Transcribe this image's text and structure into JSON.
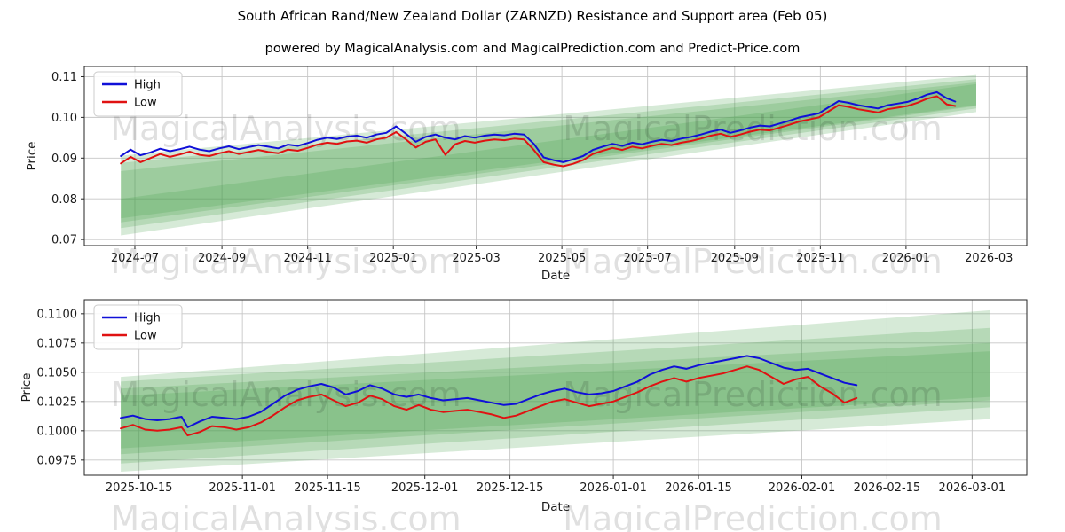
{
  "title": "South African Rand/New Zealand Dollar (ZARNZD) Resistance and Support area (Feb 05)",
  "subtitle": "powered by MagicalAnalysis.com and MagicalPrediction.com and Predict-Price.com",
  "watermark": {
    "texts": [
      "MagicalAnalysis.com",
      "MagicalPrediction.com"
    ]
  },
  "colors": {
    "high_line": "#1010d8",
    "low_line": "#e01212",
    "band_fill": "#46a049",
    "band_alpha": 0.22,
    "grid": "#c6c6c6",
    "spine": "#262626",
    "tick_text": "#1a1a1a",
    "watermark_text": "rgba(0,0,0,0.12)",
    "legend_border": "#cccccc",
    "legend_bg": "rgba(255,255,255,0.85)"
  },
  "chart_data": [
    {
      "type": "line",
      "xlabel": "Date",
      "ylabel": "Price",
      "grid": true,
      "legend_position": "upper left",
      "legend": [
        "High",
        "Low"
      ],
      "xlim": [
        "2024-05-26",
        "2026-03-28"
      ],
      "ylim": [
        0.0685,
        0.1125
      ],
      "xticks": [
        {
          "date": "2024-07-01",
          "label": "2024-07"
        },
        {
          "date": "2024-09-01",
          "label": "2024-09"
        },
        {
          "date": "2024-11-01",
          "label": "2024-11"
        },
        {
          "date": "2025-01-01",
          "label": "2025-01"
        },
        {
          "date": "2025-03-01",
          "label": "2025-03"
        },
        {
          "date": "2025-05-01",
          "label": "2025-05"
        },
        {
          "date": "2025-07-01",
          "label": "2025-07"
        },
        {
          "date": "2025-09-01",
          "label": "2025-09"
        },
        {
          "date": "2025-11-01",
          "label": "2025-11"
        },
        {
          "date": "2026-01-01",
          "label": "2026-01"
        },
        {
          "date": "2026-03-01",
          "label": "2026-03"
        }
      ],
      "yticks": [
        {
          "value": 0.07,
          "label": "0.07"
        },
        {
          "value": 0.08,
          "label": "0.08"
        },
        {
          "value": 0.09,
          "label": "0.09"
        },
        {
          "value": 0.1,
          "label": "0.10"
        },
        {
          "value": 0.11,
          "label": "0.11"
        }
      ],
      "dates": [
        "2024-06-21",
        "2024-06-28",
        "2024-07-05",
        "2024-07-12",
        "2024-07-19",
        "2024-07-26",
        "2024-08-02",
        "2024-08-09",
        "2024-08-16",
        "2024-08-23",
        "2024-08-30",
        "2024-09-06",
        "2024-09-13",
        "2024-09-20",
        "2024-09-27",
        "2024-10-04",
        "2024-10-11",
        "2024-10-18",
        "2024-10-25",
        "2024-11-01",
        "2024-11-08",
        "2024-11-15",
        "2024-11-22",
        "2024-11-29",
        "2024-12-06",
        "2024-12-13",
        "2024-12-20",
        "2024-12-27",
        "2025-01-03",
        "2025-01-10",
        "2025-01-17",
        "2025-01-24",
        "2025-01-31",
        "2025-02-07",
        "2025-02-14",
        "2025-02-21",
        "2025-02-28",
        "2025-03-07",
        "2025-03-14",
        "2025-03-21",
        "2025-03-28",
        "2025-04-04",
        "2025-04-11",
        "2025-04-18",
        "2025-04-25",
        "2025-05-02",
        "2025-05-09",
        "2025-05-16",
        "2025-05-23",
        "2025-05-30",
        "2025-06-06",
        "2025-06-13",
        "2025-06-20",
        "2025-06-27",
        "2025-07-04",
        "2025-07-11",
        "2025-07-18",
        "2025-07-25",
        "2025-08-01",
        "2025-08-08",
        "2025-08-15",
        "2025-08-22",
        "2025-08-29",
        "2025-09-05",
        "2025-09-12",
        "2025-09-19",
        "2025-09-26",
        "2025-10-03",
        "2025-10-10",
        "2025-10-17",
        "2025-10-24",
        "2025-10-31",
        "2025-11-07",
        "2025-11-14",
        "2025-11-21",
        "2025-11-28",
        "2025-12-05",
        "2025-12-12",
        "2025-12-19",
        "2025-12-26",
        "2026-01-02",
        "2026-01-09",
        "2026-01-16",
        "2026-01-23",
        "2026-01-30",
        "2026-02-05"
      ],
      "series": [
        {
          "name": "High",
          "color_key": "high_line",
          "values": [
            0.0905,
            0.0921,
            0.0907,
            0.0914,
            0.0923,
            0.0917,
            0.0922,
            0.0928,
            0.0921,
            0.0917,
            0.0924,
            0.0929,
            0.0922,
            0.0927,
            0.0932,
            0.0928,
            0.0924,
            0.0933,
            0.093,
            0.0937,
            0.0945,
            0.095,
            0.0947,
            0.0953,
            0.0955,
            0.095,
            0.0958,
            0.0962,
            0.0978,
            0.096,
            0.094,
            0.0952,
            0.0958,
            0.095,
            0.0946,
            0.0954,
            0.095,
            0.0955,
            0.0958,
            0.0956,
            0.096,
            0.0958,
            0.0935,
            0.0902,
            0.0895,
            0.089,
            0.0897,
            0.0905,
            0.092,
            0.0928,
            0.0935,
            0.093,
            0.0938,
            0.0934,
            0.094,
            0.0945,
            0.0942,
            0.0948,
            0.0952,
            0.0958,
            0.0965,
            0.097,
            0.0962,
            0.0968,
            0.0975,
            0.098,
            0.0978,
            0.0985,
            0.0992,
            0.1,
            0.1005,
            0.101,
            0.1025,
            0.104,
            0.1036,
            0.103,
            0.1026,
            0.1022,
            0.103,
            0.1034,
            0.1038,
            0.1046,
            0.1056,
            0.1062,
            0.1047,
            0.1039
          ]
        },
        {
          "name": "Low",
          "color_key": "low_line",
          "values": [
            0.0887,
            0.0903,
            0.089,
            0.09,
            0.091,
            0.0903,
            0.0909,
            0.0916,
            0.0908,
            0.0905,
            0.0912,
            0.0917,
            0.091,
            0.0915,
            0.092,
            0.0915,
            0.0912,
            0.0921,
            0.0918,
            0.0925,
            0.0933,
            0.0938,
            0.0935,
            0.0941,
            0.0943,
            0.0938,
            0.0946,
            0.095,
            0.0964,
            0.0946,
            0.0926,
            0.094,
            0.0946,
            0.0908,
            0.0934,
            0.0942,
            0.0938,
            0.0943,
            0.0946,
            0.0944,
            0.0948,
            0.0946,
            0.092,
            0.089,
            0.0884,
            0.088,
            0.0886,
            0.0895,
            0.091,
            0.0918,
            0.0925,
            0.092,
            0.0928,
            0.0924,
            0.093,
            0.0935,
            0.0932,
            0.0938,
            0.0942,
            0.0948,
            0.0955,
            0.096,
            0.0952,
            0.0958,
            0.0965,
            0.097,
            0.0968,
            0.0975,
            0.0982,
            0.099,
            0.0995,
            0.1,
            0.1015,
            0.103,
            0.1026,
            0.102,
            0.1016,
            0.1012,
            0.102,
            0.1024,
            0.1028,
            0.1036,
            0.1046,
            0.1052,
            0.1032,
            0.1028
          ]
        }
      ],
      "bands": [
        {
          "start": "2024-06-21",
          "end": "2026-02-20",
          "start_low": 0.071,
          "start_high": 0.0906,
          "end_low": 0.1013,
          "end_high": 0.1104
        },
        {
          "start": "2024-06-21",
          "end": "2026-02-20",
          "start_low": 0.0728,
          "start_high": 0.0888,
          "end_low": 0.1022,
          "end_high": 0.1094
        },
        {
          "start": "2024-06-21",
          "end": "2026-02-20",
          "start_low": 0.0742,
          "start_high": 0.0868,
          "end_low": 0.1028,
          "end_high": 0.1086
        },
        {
          "start": "2024-06-21",
          "end": "2026-02-20",
          "start_low": 0.0752,
          "start_high": 0.08,
          "end_low": 0.103,
          "end_high": 0.1082
        }
      ]
    },
    {
      "type": "line",
      "xlabel": "Date",
      "ylabel": "Price",
      "grid": true,
      "legend_position": "upper left",
      "legend": [
        "High",
        "Low"
      ],
      "xlim": [
        "2025-10-06",
        "2026-03-10"
      ],
      "ylim": [
        0.0962,
        0.1112
      ],
      "xticks": [
        {
          "date": "2025-10-15",
          "label": "2025-10-15"
        },
        {
          "date": "2025-11-01",
          "label": "2025-11-01"
        },
        {
          "date": "2025-11-15",
          "label": "2025-11-15"
        },
        {
          "date": "2025-12-01",
          "label": "2025-12-01"
        },
        {
          "date": "2025-12-15",
          "label": "2025-12-15"
        },
        {
          "date": "2026-01-01",
          "label": "2026-01-01"
        },
        {
          "date": "2026-01-15",
          "label": "2026-01-15"
        },
        {
          "date": "2026-02-01",
          "label": "2026-02-01"
        },
        {
          "date": "2026-02-15",
          "label": "2026-02-15"
        },
        {
          "date": "2026-03-01",
          "label": "2026-03-01"
        }
      ],
      "yticks": [
        {
          "value": 0.0975,
          "label": "0.0975"
        },
        {
          "value": 0.1,
          "label": "0.1000"
        },
        {
          "value": 0.1025,
          "label": "0.1025"
        },
        {
          "value": 0.105,
          "label": "0.1050"
        },
        {
          "value": 0.1075,
          "label": "0.1075"
        },
        {
          "value": 0.11,
          "label": "0.1100"
        }
      ],
      "dates": [
        "2025-10-12",
        "2025-10-14",
        "2025-10-16",
        "2025-10-18",
        "2025-10-20",
        "2025-10-22",
        "2025-10-23",
        "2025-10-25",
        "2025-10-27",
        "2025-10-29",
        "2025-10-31",
        "2025-11-02",
        "2025-11-04",
        "2025-11-06",
        "2025-11-08",
        "2025-11-10",
        "2025-11-12",
        "2025-11-14",
        "2025-11-16",
        "2025-11-18",
        "2025-11-20",
        "2025-11-22",
        "2025-11-24",
        "2025-11-26",
        "2025-11-28",
        "2025-11-30",
        "2025-12-02",
        "2025-12-04",
        "2025-12-06",
        "2025-12-08",
        "2025-12-10",
        "2025-12-12",
        "2025-12-14",
        "2025-12-16",
        "2025-12-18",
        "2025-12-20",
        "2025-12-22",
        "2025-12-24",
        "2025-12-26",
        "2025-12-28",
        "2025-12-30",
        "2026-01-01",
        "2026-01-03",
        "2026-01-05",
        "2026-01-07",
        "2026-01-09",
        "2026-01-11",
        "2026-01-13",
        "2026-01-15",
        "2026-01-17",
        "2026-01-19",
        "2026-01-21",
        "2026-01-23",
        "2026-01-25",
        "2026-01-27",
        "2026-01-29",
        "2026-01-31",
        "2026-02-02",
        "2026-02-04",
        "2026-02-06",
        "2026-02-08",
        "2026-02-10"
      ],
      "series": [
        {
          "name": "High",
          "color_key": "high_line",
          "values": [
            0.1011,
            0.1013,
            0.101,
            0.1009,
            0.101,
            0.1012,
            0.1003,
            0.1008,
            0.1012,
            0.1011,
            0.101,
            0.1012,
            0.1016,
            0.1023,
            0.103,
            0.1035,
            0.1038,
            0.104,
            0.1037,
            0.1031,
            0.1034,
            0.1039,
            0.1036,
            0.1031,
            0.1029,
            0.1031,
            0.1028,
            0.1026,
            0.1027,
            0.1028,
            0.1026,
            0.1024,
            0.1022,
            0.1023,
            0.1027,
            0.1031,
            0.1034,
            0.1036,
            0.1033,
            0.1031,
            0.1032,
            0.1034,
            0.1038,
            0.1042,
            0.1048,
            0.1052,
            0.1055,
            0.1053,
            0.1056,
            0.1058,
            0.106,
            0.1062,
            0.1064,
            0.1062,
            0.1058,
            0.1054,
            0.1052,
            0.1053,
            0.1049,
            0.1045,
            0.1041,
            0.1039
          ]
        },
        {
          "name": "Low",
          "color_key": "low_line",
          "values": [
            0.1002,
            0.1005,
            0.1001,
            0.1,
            0.1001,
            0.1003,
            0.0996,
            0.0999,
            0.1004,
            0.1003,
            0.1001,
            0.1003,
            0.1007,
            0.1013,
            0.102,
            0.1026,
            0.1029,
            0.1031,
            0.1026,
            0.1021,
            0.1024,
            0.103,
            0.1027,
            0.1021,
            0.1018,
            0.1022,
            0.1018,
            0.1016,
            0.1017,
            0.1018,
            0.1016,
            0.1014,
            0.1011,
            0.1013,
            0.1017,
            0.1021,
            0.1025,
            0.1027,
            0.1024,
            0.1021,
            0.1023,
            0.1025,
            0.1029,
            0.1033,
            0.1038,
            0.1042,
            0.1045,
            0.1042,
            0.1045,
            0.1047,
            0.1049,
            0.1052,
            0.1055,
            0.1052,
            0.1046,
            0.104,
            0.1044,
            0.1046,
            0.1038,
            0.1032,
            0.1024,
            0.1028
          ]
        }
      ],
      "bands": [
        {
          "start": "2025-10-12",
          "end": "2026-03-04",
          "start_low": 0.0965,
          "start_high": 0.1046,
          "end_low": 0.101,
          "end_high": 0.1103
        },
        {
          "start": "2025-10-12",
          "end": "2026-03-04",
          "start_low": 0.0972,
          "start_high": 0.1042,
          "end_low": 0.102,
          "end_high": 0.1088
        },
        {
          "start": "2025-10-12",
          "end": "2026-03-04",
          "start_low": 0.098,
          "start_high": 0.1036,
          "end_low": 0.1026,
          "end_high": 0.1075
        },
        {
          "start": "2025-10-12",
          "end": "2026-03-04",
          "start_low": 0.0985,
          "start_high": 0.103,
          "end_low": 0.1029,
          "end_high": 0.1068
        }
      ]
    }
  ]
}
